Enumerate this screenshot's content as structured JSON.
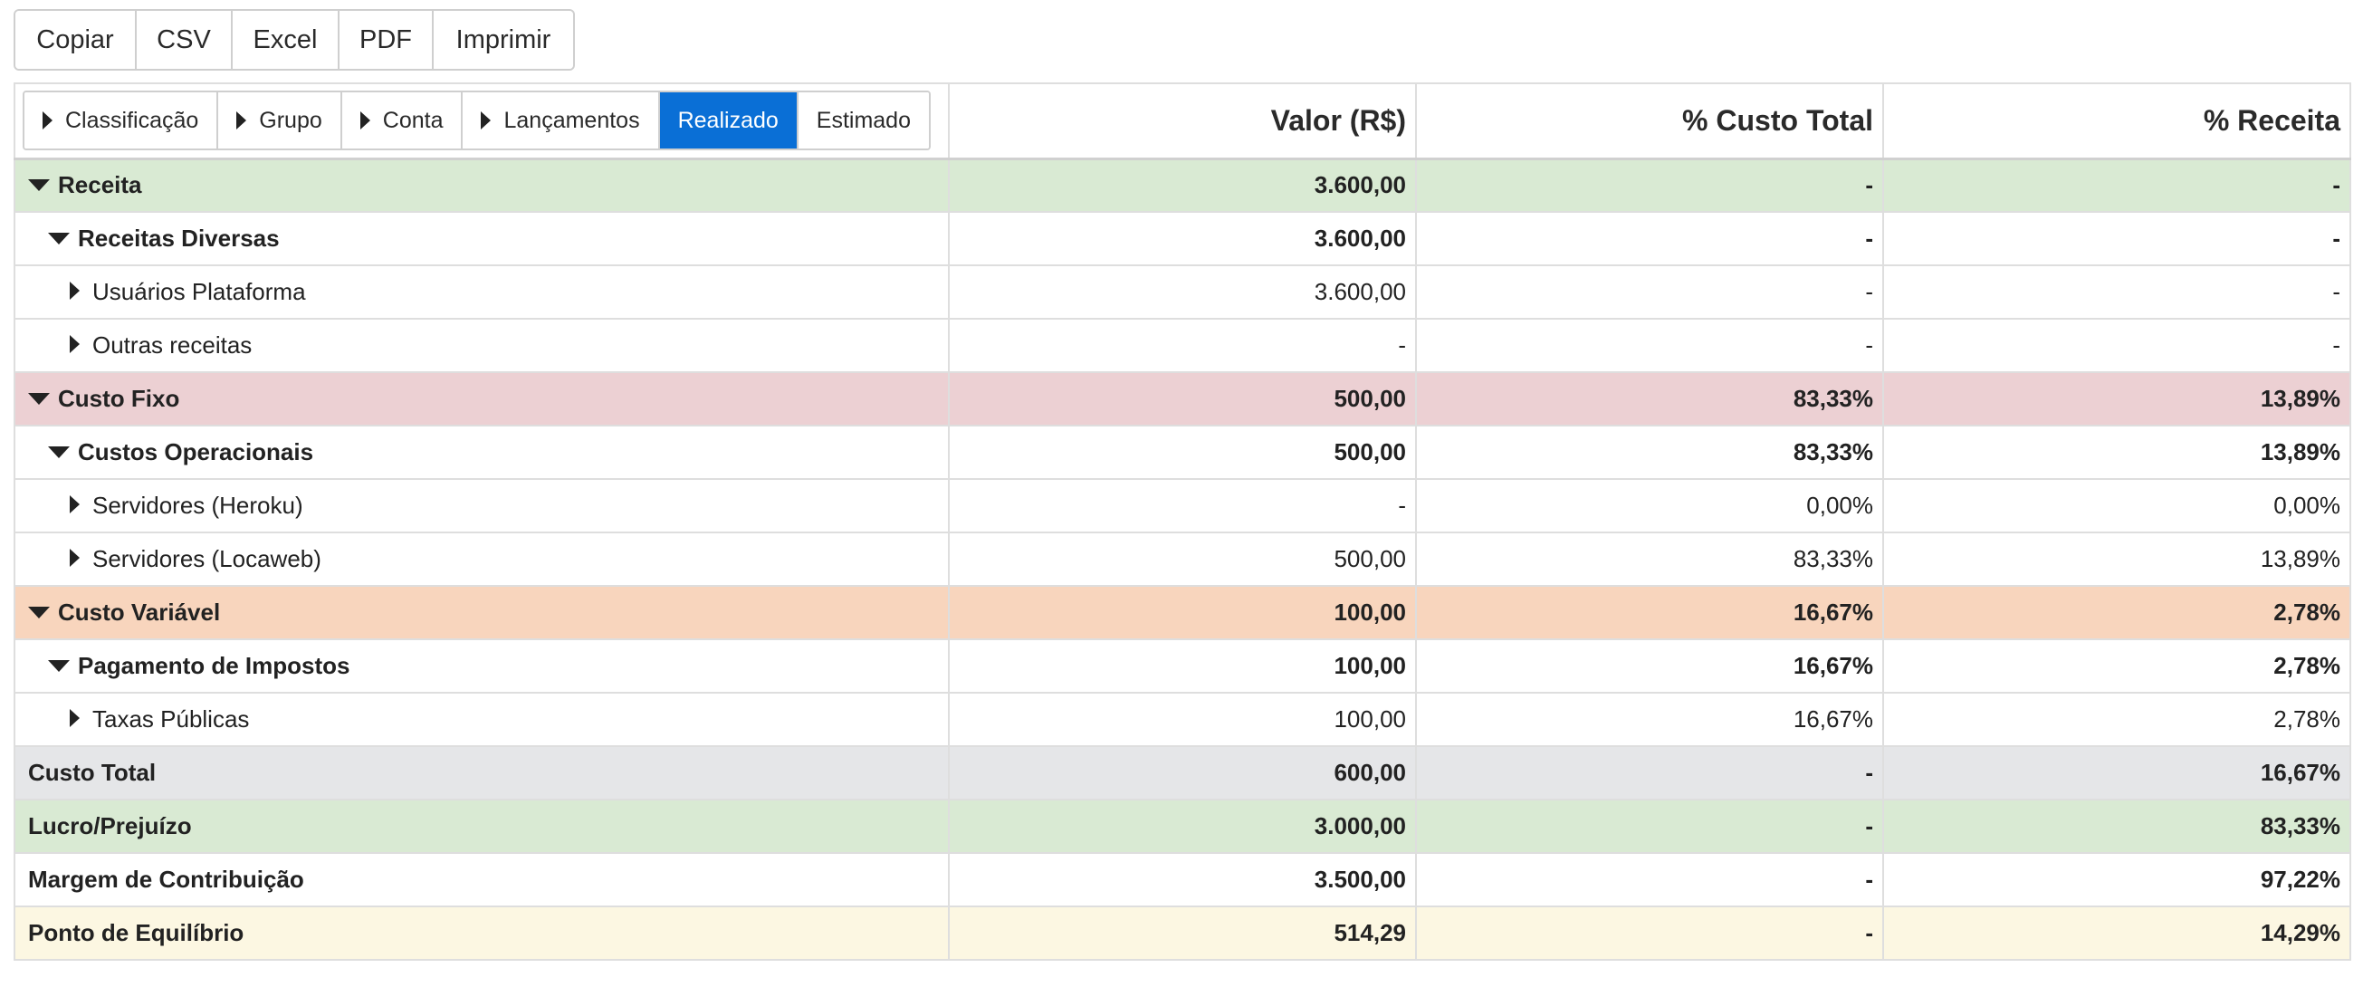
{
  "export_toolbar": {
    "buttons": [
      "Copiar",
      "CSV",
      "Excel",
      "PDF",
      "Imprimir"
    ]
  },
  "view_controls": {
    "toggles": [
      "Classificação",
      "Grupo",
      "Conta",
      "Lançamentos"
    ],
    "modes": [
      "Realizado",
      "Estimado"
    ],
    "active_mode": "Realizado"
  },
  "columns": [
    "Valor (R$)",
    "% Custo Total",
    "% Receita"
  ],
  "colors": {
    "accent": "#0a6fd6",
    "receita": "#d9ead3",
    "custo_fixo": "#ecd0d3",
    "custo_variavel": "#f8d5bd",
    "custo_total": "#e5e6e8",
    "ponto_equilibrio": "#fcf7e2"
  },
  "rows": [
    {
      "label": "Receita",
      "valor": "3.600,00",
      "pct_custo": "-",
      "pct_receita": "-"
    },
    {
      "label": "Receitas Diversas",
      "valor": "3.600,00",
      "pct_custo": "-",
      "pct_receita": "-"
    },
    {
      "label": "Usuários Plataforma",
      "valor": "3.600,00",
      "pct_custo": "-",
      "pct_receita": "-"
    },
    {
      "label": "Outras receitas",
      "valor": "-",
      "pct_custo": "-",
      "pct_receita": "-"
    },
    {
      "label": "Custo Fixo",
      "valor": "500,00",
      "pct_custo": "83,33%",
      "pct_receita": "13,89%"
    },
    {
      "label": "Custos Operacionais",
      "valor": "500,00",
      "pct_custo": "83,33%",
      "pct_receita": "13,89%"
    },
    {
      "label": "Servidores (Heroku)",
      "valor": "-",
      "pct_custo": "0,00%",
      "pct_receita": "0,00%"
    },
    {
      "label": "Servidores (Locaweb)",
      "valor": "500,00",
      "pct_custo": "83,33%",
      "pct_receita": "13,89%"
    },
    {
      "label": "Custo Variável",
      "valor": "100,00",
      "pct_custo": "16,67%",
      "pct_receita": "2,78%"
    },
    {
      "label": "Pagamento de Impostos",
      "valor": "100,00",
      "pct_custo": "16,67%",
      "pct_receita": "2,78%"
    },
    {
      "label": "Taxas Públicas",
      "valor": "100,00",
      "pct_custo": "16,67%",
      "pct_receita": "2,78%"
    },
    {
      "label": "Custo Total",
      "valor": "600,00",
      "pct_custo": "-",
      "pct_receita": "16,67%"
    },
    {
      "label": "Lucro/Prejuízo",
      "valor": "3.000,00",
      "pct_custo": "-",
      "pct_receita": "83,33%"
    },
    {
      "label": "Margem de Contribuição",
      "valor": "3.500,00",
      "pct_custo": "-",
      "pct_receita": "97,22%"
    },
    {
      "label": "Ponto de Equilíbrio",
      "valor": "514,29",
      "pct_custo": "-",
      "pct_receita": "14,29%"
    }
  ]
}
